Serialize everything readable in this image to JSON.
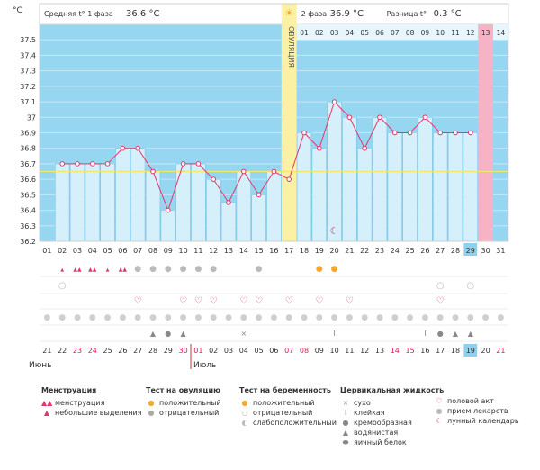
{
  "chart_data": {
    "type": "line",
    "ylabel": "°C",
    "ylim": [
      36.2,
      37.6
    ],
    "yticks": [
      "37.5",
      "37.4",
      "37.3",
      "37.2",
      "37.1",
      "37",
      "36.9",
      "36.8",
      "36.7",
      "36.6",
      "36.5",
      "36.4",
      "36.3",
      "36.2"
    ],
    "days": [
      "01",
      "02",
      "03",
      "04",
      "05",
      "06",
      "07",
      "08",
      "09",
      "10",
      "11",
      "12",
      "13",
      "14",
      "15",
      "16",
      "17",
      "18",
      "19",
      "20",
      "21",
      "22",
      "23",
      "24",
      "25",
      "26",
      "27",
      "28",
      "29",
      "30",
      "31"
    ],
    "dates": [
      "21",
      "22",
      "23",
      "24",
      "25",
      "26",
      "27",
      "28",
      "29",
      "30",
      "01",
      "02",
      "03",
      "04",
      "05",
      "06",
      "07",
      "08",
      "09",
      "10",
      "11",
      "12",
      "13",
      "14",
      "15",
      "16",
      "17",
      "18",
      "19",
      "20",
      "21"
    ],
    "date_colors": [
      "#333333",
      "#333333",
      "#d6204f",
      "#d6204f",
      "#333333",
      "#333333",
      "#333333",
      "#333333",
      "#333333",
      "#d6204f",
      "#d6204f",
      "#333333",
      "#333333",
      "#333333",
      "#333333",
      "#333333",
      "#d6204f",
      "#d6204f",
      "#333333",
      "#333333",
      "#333333",
      "#333333",
      "#333333",
      "#d6204f",
      "#d6204f",
      "#333333",
      "#333333",
      "#333333",
      "#333333",
      "#333333",
      "#d6204f"
    ],
    "month_labels": [
      "Июнь",
      "Июль"
    ],
    "highlight_day": "29",
    "temps": [
      null,
      36.7,
      36.7,
      36.7,
      36.7,
      36.8,
      36.8,
      36.65,
      36.4,
      36.7,
      36.7,
      36.6,
      36.45,
      36.65,
      36.5,
      36.65,
      36.6,
      36.9,
      36.8,
      37.1,
      37.0,
      36.8,
      37.0,
      36.9,
      36.9,
      37.0,
      36.9,
      36.9,
      36.9,
      null,
      null
    ],
    "coverline": 36.65,
    "ovulation_day": 17,
    "ovulation_label": "ОВУЛЯЦИЯ",
    "phase2_days": [
      "01",
      "02",
      "03",
      "04",
      "05",
      "06",
      "07",
      "08",
      "09",
      "10",
      "11",
      "12",
      "13",
      "14"
    ],
    "pink_day_index": 12,
    "phase1_label": "Средняя t° 1 фаза",
    "phase1_value": "36.6 °C",
    "phase2_label": "2 фаза",
    "phase2_value": "36.9 °C",
    "diff_label": "Разница t°",
    "diff_value": "0.3 °C",
    "grid": true
  },
  "colors": {
    "sky": "#96d6f0",
    "bar": "#d5effb",
    "bar_edge": "#7cc4e6",
    "line": "#e0386b",
    "ovulation": "#fbf1a4",
    "pink": "#f6b3c6",
    "coverline": "#f0e86a"
  },
  "legend": {
    "menstr": {
      "title": "Менструация",
      "items": [
        "менструация",
        "небольшие выделения"
      ]
    },
    "ovtest": {
      "title": "Тест на овуляцию",
      "items": [
        "положительный",
        "отрицательный"
      ]
    },
    "pregtest": {
      "title": "Тест на беременность",
      "items": [
        "положительный",
        "отрицательный",
        "слабоположительный"
      ]
    },
    "cervical": {
      "title": "Цервикальная жидкость",
      "items": [
        "сухо",
        "клейкая",
        "кремообразная",
        "водянистая",
        "яичный белок"
      ]
    },
    "other": {
      "items": [
        "половой акт",
        "прием лекарств",
        "лунный календарь"
      ]
    }
  }
}
